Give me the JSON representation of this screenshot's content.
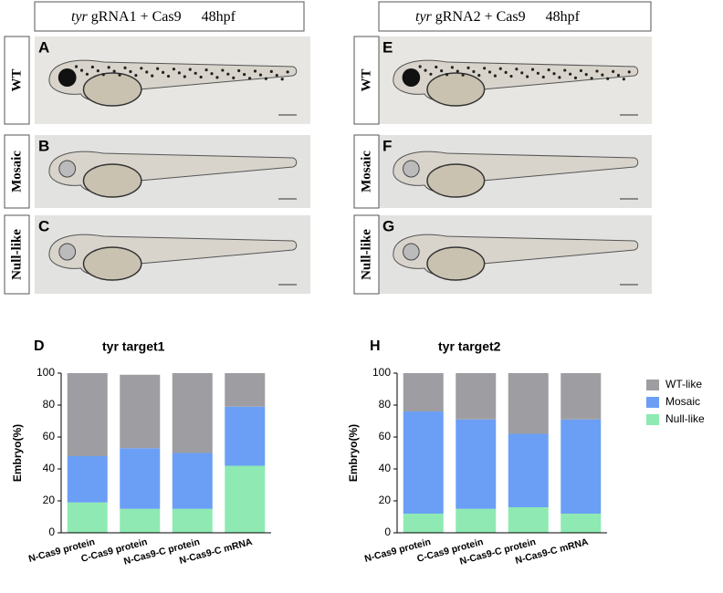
{
  "figure": {
    "columns": [
      {
        "gene": "tyr",
        "label": "gRNA1 + Cas9",
        "stage": "48hpf",
        "panels": [
          "A",
          "B",
          "C"
        ]
      },
      {
        "gene": "tyr",
        "label": "gRNA2 + Cas9",
        "stage": "48hpf",
        "panels": [
          "E",
          "F",
          "G"
        ]
      }
    ],
    "rows": [
      "WT",
      "Mosaic",
      "Null-like"
    ]
  },
  "chart_data": [
    {
      "type": "stacked_bar",
      "panel": "D",
      "title": "tyr target1",
      "y_label": "Embryo(%)",
      "categories": [
        "N-Cas9 protein",
        "C-Cas9 protein",
        "N-Cas9-C protein",
        "N-Cas9-C mRNA"
      ],
      "series": [
        {
          "name": "Null-like",
          "color": "#8eeab2",
          "values": [
            19,
            15,
            15,
            42
          ]
        },
        {
          "name": "Mosaic",
          "color": "#6b9ff5",
          "values": [
            29,
            38,
            35,
            37
          ]
        },
        {
          "name": "WT-like",
          "color": "#9e9ea2",
          "values": [
            52,
            46,
            50,
            21
          ]
        }
      ],
      "ylim": [
        0,
        100
      ],
      "yticks": [
        0,
        20,
        40,
        60,
        80,
        100
      ],
      "legend": false
    },
    {
      "type": "stacked_bar",
      "panel": "H",
      "title": "tyr target2",
      "y_label": "Embryo(%)",
      "categories": [
        "N-Cas9 protein",
        "C-Cas9 protein",
        "N-Cas9-C protein",
        "N-Cas9-C mRNA"
      ],
      "series": [
        {
          "name": "Null-like",
          "color": "#8eeab2",
          "values": [
            12,
            15,
            16,
            12
          ]
        },
        {
          "name": "Mosaic",
          "color": "#6b9ff5",
          "values": [
            64,
            56,
            46,
            59
          ]
        },
        {
          "name": "WT-like",
          "color": "#9e9ea2",
          "values": [
            24,
            29,
            38,
            29
          ]
        }
      ],
      "ylim": [
        0,
        100
      ],
      "yticks": [
        0,
        20,
        40,
        60,
        80,
        100
      ],
      "legend": "right"
    }
  ]
}
